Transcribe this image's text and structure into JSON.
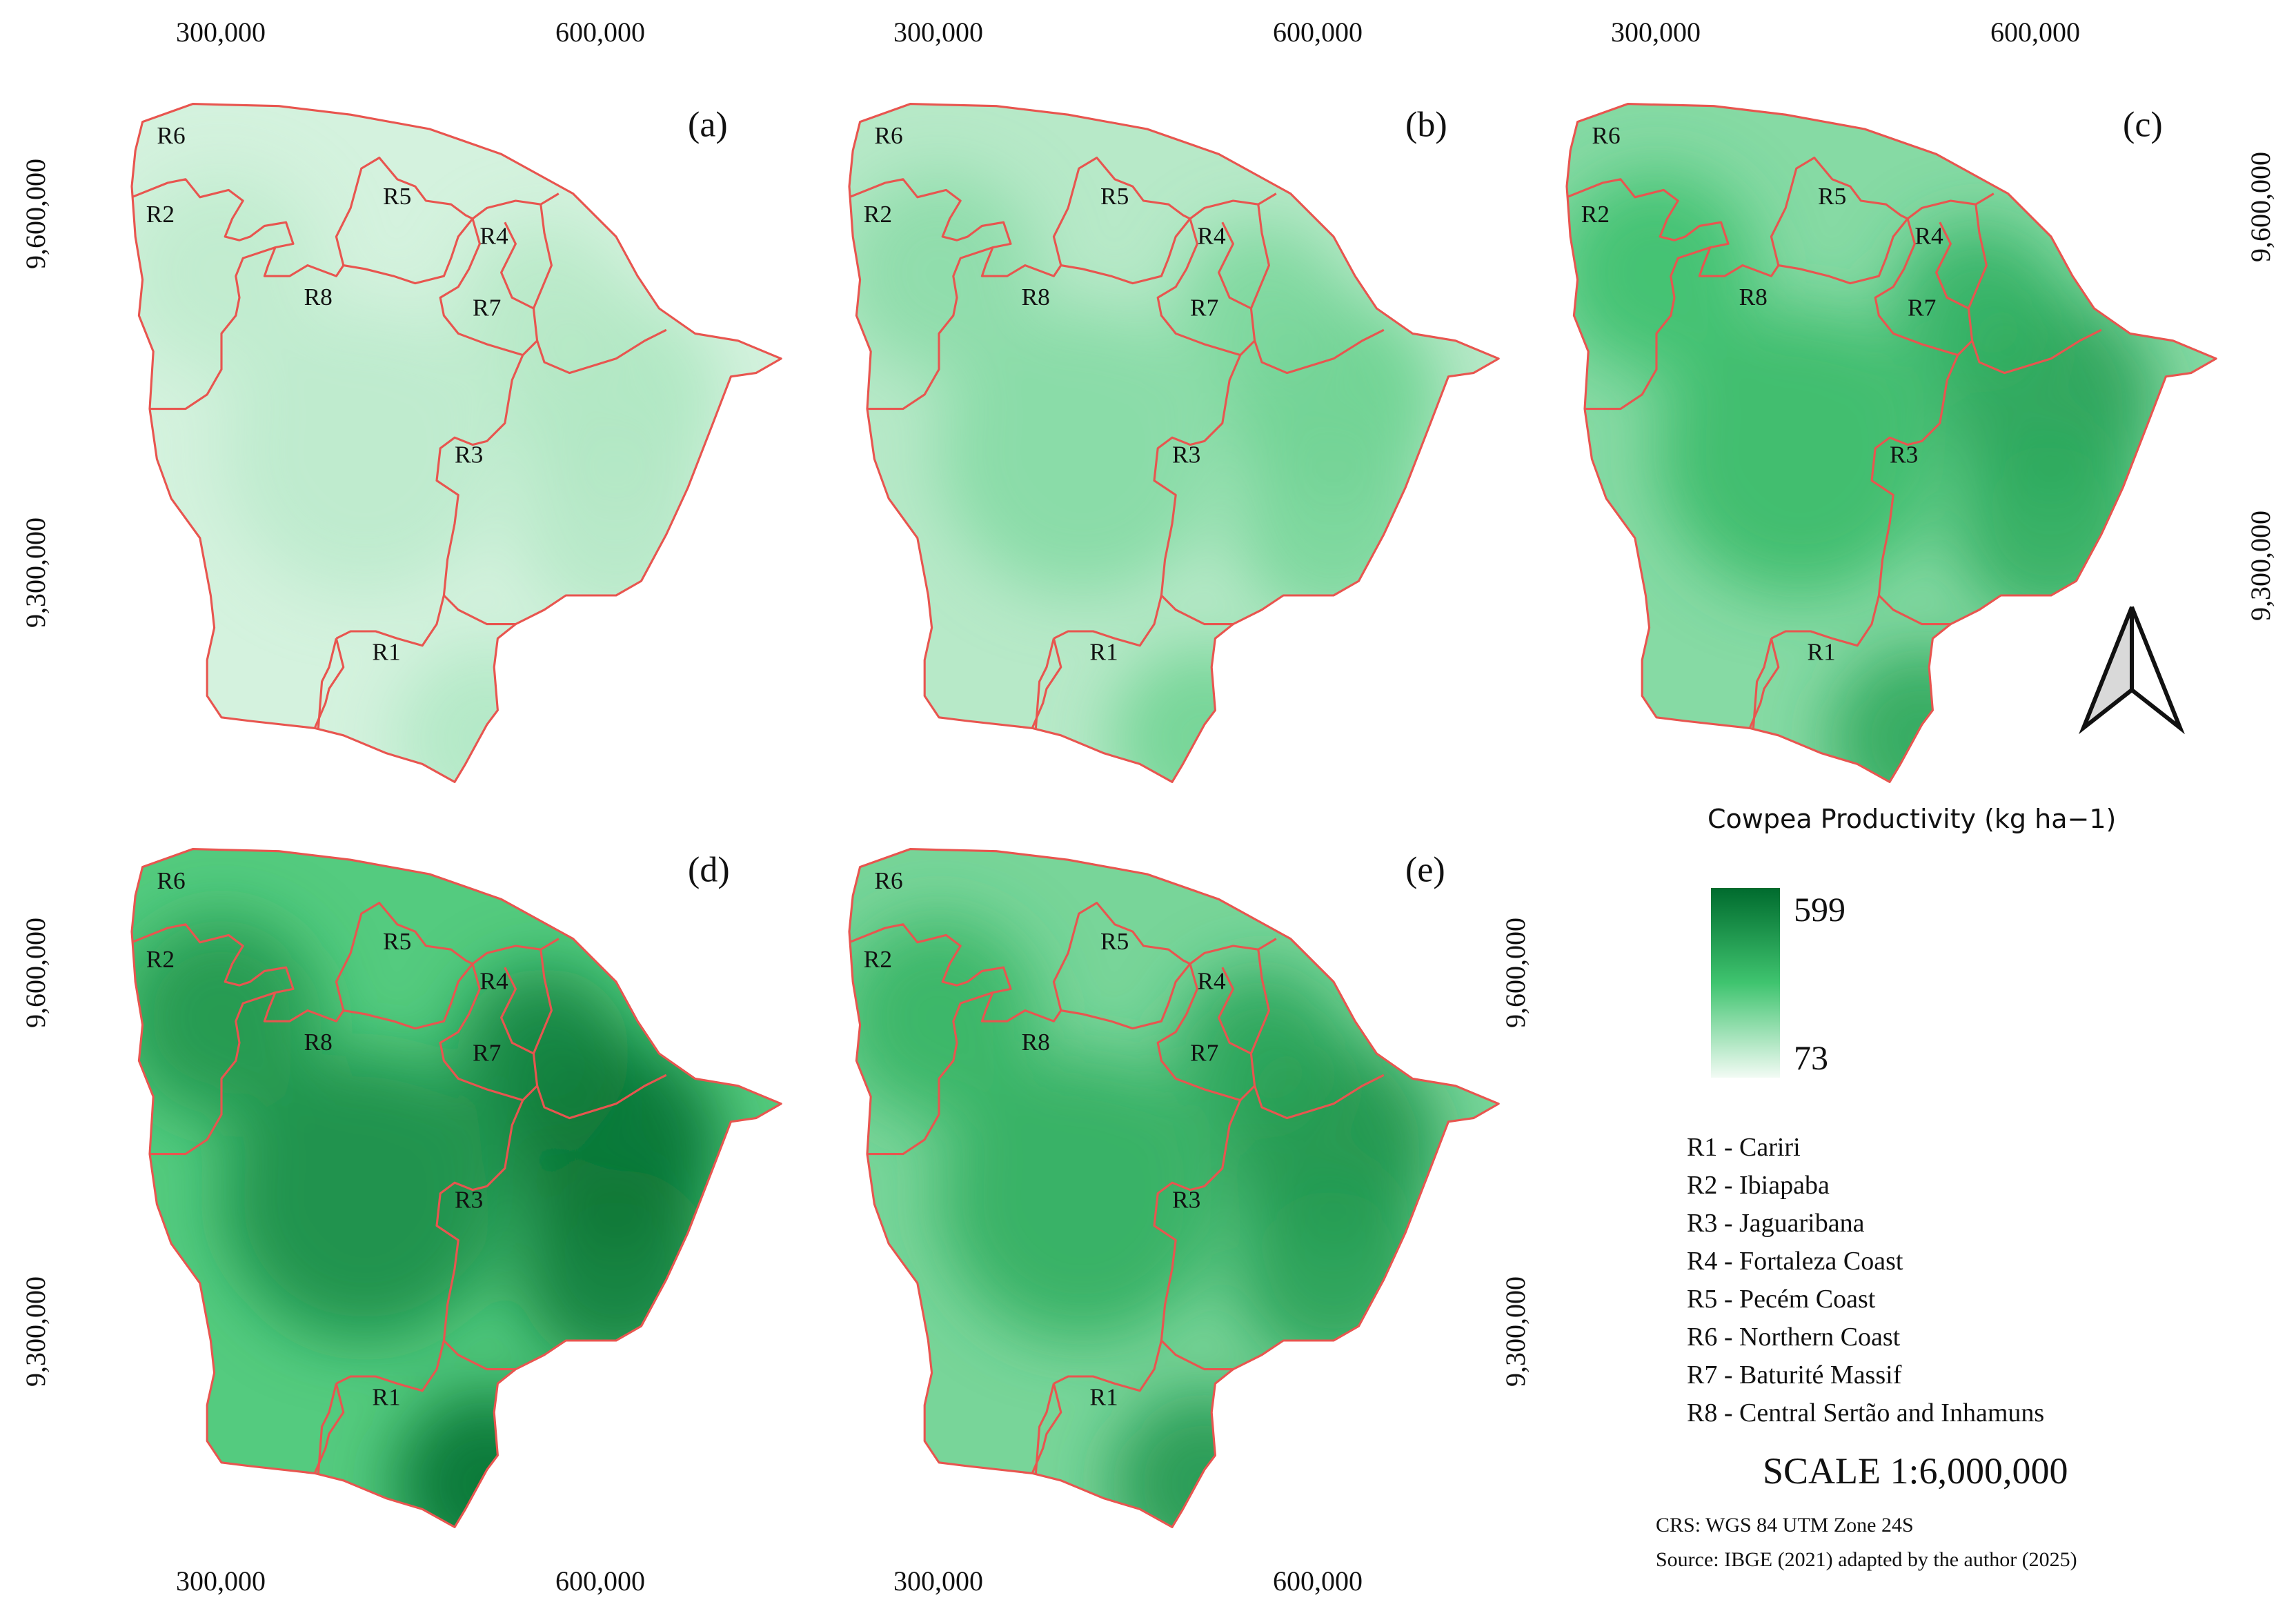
{
  "axes": {
    "x_ticks": [
      "300,000",
      "600,000"
    ],
    "y_ticks": [
      "9,600,000",
      "9,300,000"
    ]
  },
  "panels": [
    {
      "label": "(a)",
      "intensity": 0.15
    },
    {
      "label": "(b)",
      "intensity": 0.3
    },
    {
      "label": "(c)",
      "intensity": 0.55
    },
    {
      "label": "(d)",
      "intensity": 0.8
    },
    {
      "label": "(e)",
      "intensity": 0.62
    }
  ],
  "region_codes": [
    "R1",
    "R2",
    "R3",
    "R4",
    "R5",
    "R6",
    "R7",
    "R8"
  ],
  "legend": {
    "title": "Cowpea Productivity (kg ha−1)",
    "max": "599",
    "min": "73",
    "color_low": "#f2fbf4",
    "color_mid": "#3fc46f",
    "color_high": "#006b2e",
    "regions": [
      "R1 - Cariri",
      "R2 - Ibiapaba",
      "R3 - Jaguaribana",
      "R4 - Fortaleza Coast",
      "R5 - Pecém Coast",
      "R6 - Northern Coast",
      "R7 - Baturité Massif",
      "R8 - Central Sertão and Inhamuns"
    ]
  },
  "scale": "SCALE 1:6,000,000",
  "crs": "CRS: WGS 84 UTM Zone 24S",
  "source": "Source: IBGE (2021) adapted by the author (2025)",
  "colors": {
    "boundary": "#e8554f",
    "north_arrow_fill": "#d9d9d9"
  },
  "icons": {
    "north_arrow": "north-arrow-icon"
  }
}
